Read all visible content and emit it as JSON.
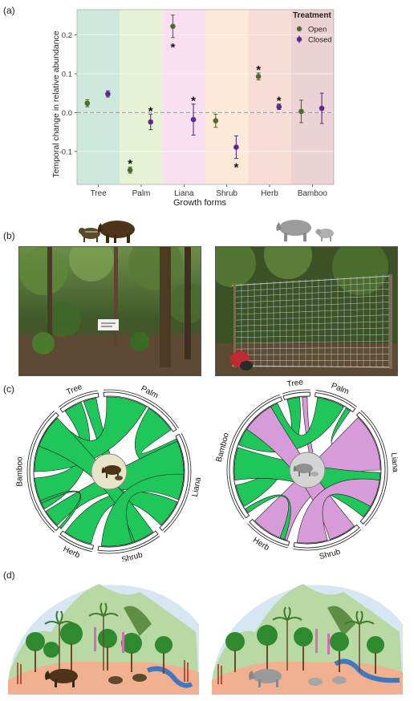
{
  "panels": {
    "a": {
      "letter": "(a)"
    },
    "b": {
      "letter": "(b)"
    },
    "c": {
      "letter": "(c)"
    },
    "d": {
      "letter": "(d)"
    }
  },
  "chart_data": {
    "type": "scatter",
    "title": "",
    "xlabel": "Growth forms",
    "ylabel": "Temporal change in relative abundance",
    "categories": [
      "Tree",
      "Palm",
      "Liana",
      "Shrub",
      "Herb",
      "Bamboo"
    ],
    "ylim": [
      -0.185,
      0.265
    ],
    "yticks": [
      -0.1,
      0.0,
      0.1,
      0.2
    ],
    "ytick_labels": [
      "-0.1",
      "0.0",
      "0.1",
      "0.2"
    ],
    "grid": true,
    "legend": {
      "title": "Treatment",
      "position": "top-right"
    },
    "band_colors": [
      "#cde8dd",
      "#e7f2d4",
      "#f9dff0",
      "#fde9d8",
      "#f7ddd6",
      "#ecd1d5"
    ],
    "series": [
      {
        "name": "Open",
        "color": "#4c6b2c",
        "values": [
          0.024,
          -0.148,
          0.222,
          -0.021,
          0.093,
          0.003
        ],
        "lower": [
          0.015,
          -0.156,
          0.193,
          -0.038,
          0.084,
          -0.026
        ],
        "upper": [
          0.033,
          -0.14,
          0.251,
          -0.004,
          0.102,
          0.032
        ],
        "significant": [
          false,
          true,
          true,
          false,
          true,
          false
        ]
      },
      {
        "name": "Closed",
        "color": "#5b2a8c",
        "values": [
          0.048,
          -0.024,
          -0.018,
          -0.089,
          0.015,
          0.011
        ],
        "lower": [
          0.04,
          -0.044,
          -0.058,
          -0.118,
          0.008,
          -0.028
        ],
        "upper": [
          0.056,
          -0.004,
          0.022,
          -0.06,
          0.022,
          0.05
        ],
        "significant": [
          false,
          true,
          true,
          true,
          true,
          false
        ]
      }
    ],
    "annotation": "*"
  },
  "chord_left": {
    "labels": [
      "Tree",
      "Palm",
      "Liana",
      "Shrub",
      "Herb",
      "Bamboo"
    ],
    "fill": "#1fc65a"
  },
  "chord_right": {
    "labels": [
      "Tree",
      "Palm",
      "Liana",
      "Shrub",
      "Herb",
      "Bamboo"
    ],
    "fill": "#1fc65a",
    "highlight": "#d79bd9"
  }
}
